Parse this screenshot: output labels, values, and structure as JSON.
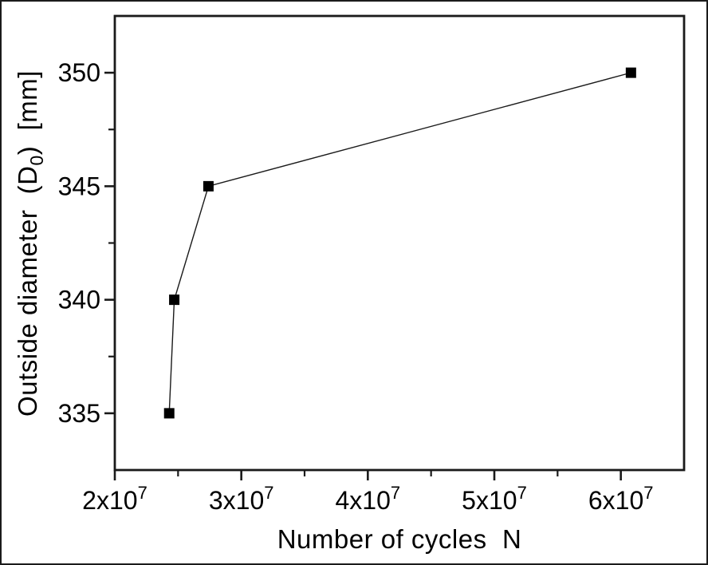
{
  "figure": {
    "background": "#ffffff",
    "frame_color": "#111111",
    "text_color": "#000000",
    "x_title": "Number of cycles  N",
    "y_title_pre": "Outside diameter  (D",
    "y_title_sub": "0",
    "y_title_post": ")  [mm]"
  },
  "chart_data": {
    "type": "line",
    "title": "",
    "xlabel": "Number of cycles N",
    "ylabel": "Outside diameter (D0) [mm]",
    "grid": false,
    "legend": false,
    "line_color": "#1a1a1a",
    "marker_color": "#000000",
    "marker": "filled-square",
    "xlim": [
      20000000,
      65000000
    ],
    "ylim": [
      332.5,
      352.5
    ],
    "series": [
      {
        "name": "outside-diameter-vs-cycles",
        "points": [
          {
            "x": 24300000,
            "y": 335
          },
          {
            "x": 24700000,
            "y": 340
          },
          {
            "x": 27400000,
            "y": 345
          },
          {
            "x": 60800000,
            "y": 350
          }
        ]
      }
    ],
    "x_major_ticks": [
      {
        "value": 20000000,
        "base": "2x10",
        "exp": "7"
      },
      {
        "value": 30000000,
        "base": "3x10",
        "exp": "7"
      },
      {
        "value": 40000000,
        "base": "4x10",
        "exp": "7"
      },
      {
        "value": 50000000,
        "base": "5x10",
        "exp": "7"
      },
      {
        "value": 60000000,
        "base": "6x10",
        "exp": "7"
      }
    ],
    "x_minor_ticks": [
      25000000,
      35000000,
      45000000,
      55000000
    ],
    "y_major_ticks": [
      {
        "value": 335,
        "label": "335"
      },
      {
        "value": 340,
        "label": "340"
      },
      {
        "value": 345,
        "label": "345"
      },
      {
        "value": 350,
        "label": "350"
      }
    ],
    "y_minor_ticks": [
      337.5,
      342.5,
      347.5
    ]
  }
}
